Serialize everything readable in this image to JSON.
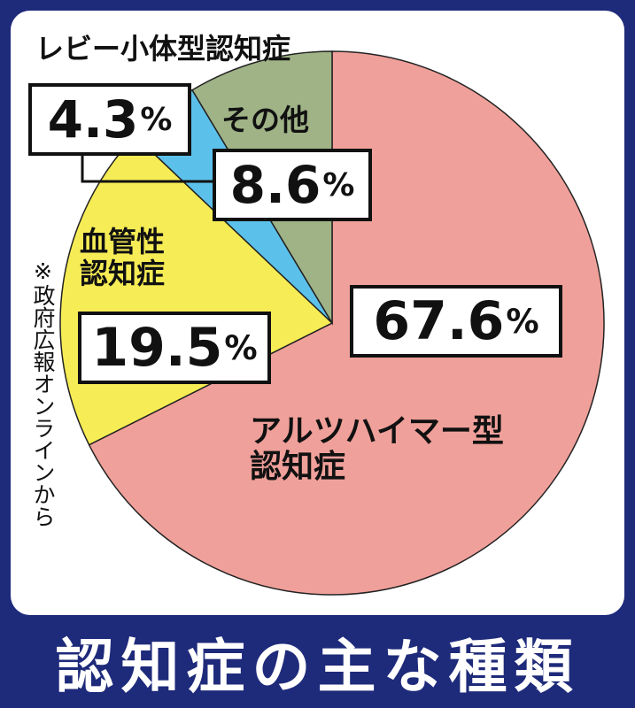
{
  "title": "認知症の主な種類",
  "source_note": "※政府広報オンラインから",
  "colors": {
    "background": "#1e2a7a",
    "alzheimer": "#f0a09a",
    "vascular": "#f6ec55",
    "lewy": "#5cc1ea",
    "other": "#9fb386"
  },
  "chart_data": {
    "type": "pie",
    "title": "認知症の主な種類",
    "start_angle_deg": 0,
    "direction": "clockwise",
    "slices": [
      {
        "label": "アルツハイマー型\n認知症",
        "value": 67.6,
        "value_text": "67.6",
        "unit": "%",
        "color": "#f0a09a"
      },
      {
        "label": "血管性\n認知症",
        "value": 19.5,
        "value_text": "19.5",
        "unit": "%",
        "color": "#f6ec55"
      },
      {
        "label": "レビー小体型認知症",
        "value": 4.3,
        "value_text": "4.3",
        "unit": "%",
        "color": "#5cc1ea"
      },
      {
        "label": "その他",
        "value": 8.6,
        "value_text": "8.6",
        "unit": "%",
        "color": "#9fb386"
      }
    ]
  }
}
